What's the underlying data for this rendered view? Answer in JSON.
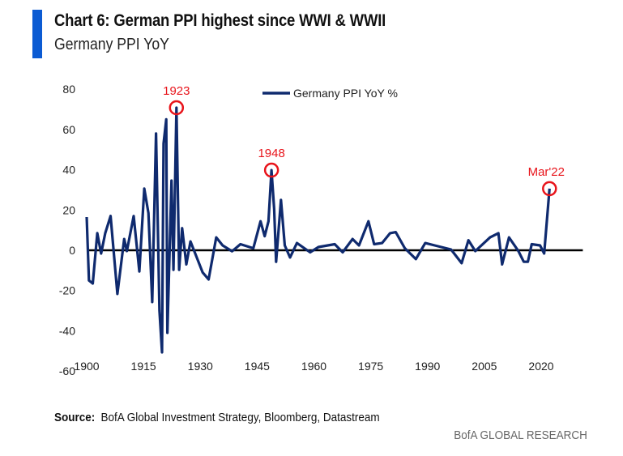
{
  "header": {
    "title": "Chart 6: German PPI highest since WWI & WWII",
    "subtitle": "Germany PPI YoY"
  },
  "footer": {
    "source_label": "Source:",
    "source_text": "BofA Global Investment Strategy, Bloomberg, Datastream",
    "brand": "BofA GLOBAL RESEARCH"
  },
  "colors": {
    "series": "#0f2a6e",
    "annotation": "#e8141b",
    "accent_bar": "#0b5bd3",
    "zero_line": "#000000"
  },
  "chart_data": {
    "type": "line",
    "title": "",
    "xlabel": "",
    "ylabel": "",
    "xlim": [
      1900,
      2031
    ],
    "ylim": [
      -60,
      80
    ],
    "grid": false,
    "legend": "top-center",
    "x_ticks": [
      1900,
      1915,
      1930,
      1945,
      1960,
      1975,
      1990,
      2005,
      2020
    ],
    "y_ticks": [
      80,
      60,
      40,
      20,
      0,
      -20,
      -40,
      -60
    ],
    "series": [
      {
        "name": "Germany PPI YoY %",
        "x": [
          1900,
          1900.6,
          1901.6,
          1902.8,
          1903.8,
          1904.9,
          1906.3,
          1908.1,
          1909.9,
          1910.6,
          1912.4,
          1913.9,
          1915.2,
          1916.3,
          1917.3,
          1918.3,
          1919.2,
          1919.9,
          1920.3,
          1921,
          1921.3,
          1922.4,
          1922.9,
          1923.7,
          1924.4,
          1925.2,
          1926.3,
          1927.4,
          1930.6,
          1932.2,
          1934.2,
          1935.9,
          1938.4,
          1940.6,
          1944,
          1945.9,
          1947,
          1948,
          1948.8,
          1949.5,
          1950,
          1951.3,
          1952.3,
          1953.7,
          1955.5,
          1959,
          1961.2,
          1965.5,
          1967.6,
          1970.2,
          1971.9,
          1974.4,
          1975.9,
          1978,
          1980.1,
          1981.6,
          1984,
          1986.9,
          1989.4,
          1991.9,
          1996.2,
          1999,
          2000.8,
          2002.6,
          2006.5,
          2008.7,
          2009.7,
          2011.5,
          2014,
          2015.4,
          2016.5,
          2017.5,
          2019.7,
          2020.8,
          2022.2
        ],
        "y": [
          16.5,
          -15,
          -16.5,
          8.5,
          -1.6,
          8.5,
          17,
          -21.7,
          5.6,
          -0.4,
          17,
          -10.5,
          30.6,
          18.5,
          -25.7,
          58,
          -29.8,
          -50.7,
          53,
          65,
          -41,
          34.6,
          -9.7,
          70.8,
          -9.7,
          11,
          -7,
          4.4,
          -11,
          -14.5,
          6.4,
          2.4,
          -0.5,
          3,
          1,
          14.4,
          7,
          14.4,
          39.8,
          20.5,
          -5.7,
          25,
          2.4,
          -3.6,
          3.6,
          -1,
          1.6,
          3,
          -1,
          5.6,
          2.4,
          14.4,
          3,
          3.6,
          8.5,
          9,
          1,
          -4.4,
          3.6,
          2.4,
          0.4,
          -6.4,
          5,
          -0.4,
          6.4,
          8.5,
          -7,
          6.4,
          -0.4,
          -5.7,
          -5.7,
          3,
          2.4,
          -1.6,
          30.6
        ]
      }
    ],
    "annotations": [
      {
        "label": "1923",
        "x": 1923.7,
        "y": 70.8
      },
      {
        "label": "1948",
        "x": 1948.8,
        "y": 39.8
      },
      {
        "label": "Mar'22",
        "x": 2022.2,
        "y": 30.6
      }
    ]
  }
}
